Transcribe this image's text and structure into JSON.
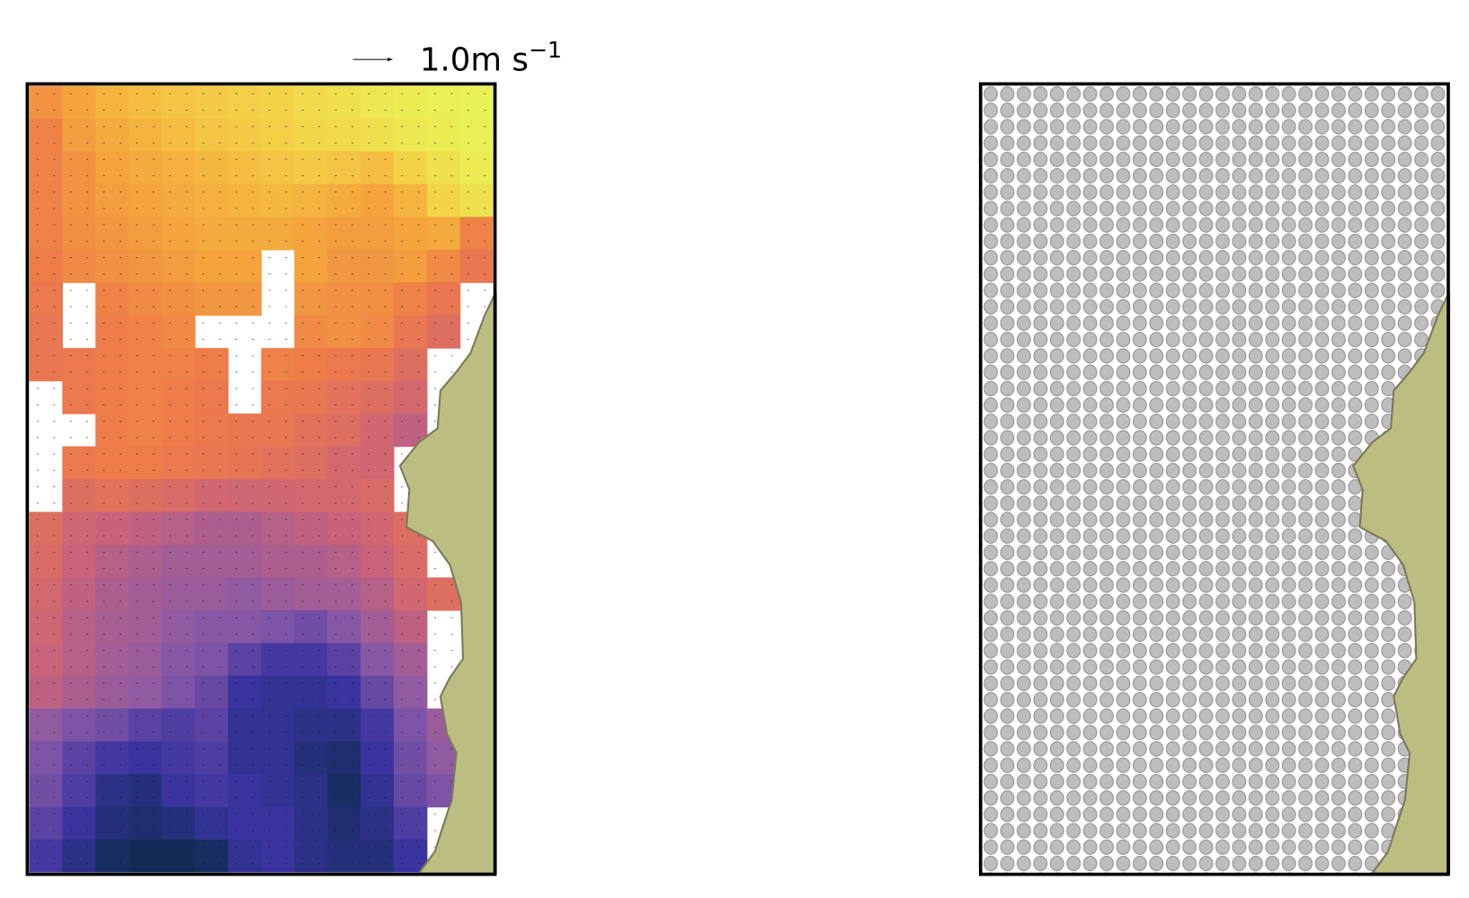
{
  "quiver_key": {
    "value": 1.0,
    "label": "1.0m s",
    "exponent": "−1"
  },
  "colormap": [
    "#0b2a4a",
    "#3a34a0",
    "#8a5aa6",
    "#cc6478",
    "#ee7a4a",
    "#f5a83c",
    "#f3d64a",
    "#e6f75a"
  ],
  "field": [
    [
      0.65,
      0.7,
      0.75,
      0.78,
      0.8,
      0.82,
      0.84,
      0.85,
      0.88,
      0.9,
      0.92,
      0.95,
      0.97,
      0.98
    ],
    [
      0.6,
      0.68,
      0.72,
      0.75,
      0.78,
      0.8,
      0.82,
      0.84,
      0.86,
      0.88,
      0.9,
      0.93,
      0.95,
      0.97
    ],
    [
      0.6,
      0.65,
      0.7,
      0.72,
      0.74,
      0.76,
      0.78,
      0.8,
      0.82,
      0.8,
      0.78,
      0.85,
      0.9,
      0.95
    ],
    [
      0.6,
      0.65,
      0.68,
      0.7,
      0.72,
      0.74,
      0.75,
      0.76,
      0.75,
      0.72,
      0.7,
      0.75,
      0.85,
      0.9
    ],
    [
      0.6,
      0.64,
      0.66,
      0.68,
      0.7,
      0.72,
      0.72,
      0.72,
      0.7,
      0.68,
      0.68,
      0.7,
      0.72,
      0.6
    ],
    [
      0.58,
      0.62,
      0.64,
      0.66,
      0.68,
      0.7,
      0.7,
      null,
      0.7,
      0.66,
      0.66,
      0.68,
      0.62,
      0.55
    ],
    [
      0.56,
      null,
      0.6,
      0.62,
      0.64,
      0.66,
      0.66,
      null,
      0.66,
      0.64,
      0.64,
      0.6,
      0.55,
      null
    ],
    [
      0.55,
      null,
      0.58,
      0.6,
      0.62,
      null,
      null,
      null,
      0.62,
      0.64,
      0.62,
      0.55,
      0.5,
      null
    ],
    [
      0.55,
      0.56,
      0.58,
      0.6,
      0.6,
      0.58,
      null,
      0.6,
      0.58,
      0.56,
      0.55,
      0.5,
      null,
      null
    ],
    [
      null,
      0.56,
      0.58,
      0.6,
      0.58,
      0.56,
      null,
      0.56,
      0.55,
      0.52,
      0.5,
      0.46,
      null,
      null
    ],
    [
      null,
      null,
      0.58,
      0.6,
      0.58,
      0.56,
      0.55,
      0.55,
      0.52,
      0.5,
      0.45,
      0.4,
      null,
      null
    ],
    [
      null,
      0.56,
      0.58,
      0.58,
      0.56,
      0.55,
      0.54,
      0.52,
      0.5,
      0.46,
      0.45,
      null,
      null,
      null
    ],
    [
      null,
      0.5,
      0.52,
      0.5,
      0.48,
      0.45,
      0.44,
      0.45,
      0.46,
      0.46,
      0.48,
      null,
      null,
      null
    ],
    [
      0.5,
      0.44,
      0.42,
      0.4,
      0.38,
      0.36,
      0.36,
      0.38,
      0.4,
      0.42,
      0.45,
      0.5,
      null,
      null
    ],
    [
      0.48,
      0.42,
      0.38,
      0.36,
      0.34,
      0.34,
      0.34,
      0.36,
      0.36,
      0.38,
      0.42,
      0.48,
      null,
      null
    ],
    [
      0.46,
      0.4,
      0.36,
      0.34,
      0.32,
      0.32,
      0.3,
      0.32,
      0.34,
      0.34,
      0.38,
      0.45,
      0.5,
      null
    ],
    [
      0.44,
      0.38,
      0.35,
      0.34,
      0.3,
      0.28,
      0.28,
      0.26,
      0.24,
      0.28,
      0.34,
      0.4,
      null,
      null
    ],
    [
      0.42,
      0.38,
      0.34,
      0.32,
      0.28,
      0.26,
      0.2,
      0.16,
      0.16,
      0.2,
      0.28,
      0.34,
      null,
      null
    ],
    [
      0.4,
      0.36,
      0.32,
      0.3,
      0.26,
      0.22,
      0.14,
      0.12,
      0.12,
      0.14,
      0.22,
      0.3,
      null,
      null
    ],
    [
      0.3,
      0.26,
      0.24,
      0.2,
      0.18,
      0.2,
      0.12,
      0.12,
      0.1,
      0.1,
      0.16,
      0.26,
      0.32,
      null
    ],
    [
      0.26,
      0.2,
      0.16,
      0.14,
      0.16,
      0.18,
      0.12,
      0.12,
      0.08,
      0.06,
      0.14,
      0.24,
      0.3,
      null
    ],
    [
      0.24,
      0.18,
      0.1,
      0.08,
      0.14,
      0.16,
      0.14,
      0.12,
      0.1,
      0.04,
      0.12,
      0.22,
      0.26,
      null
    ],
    [
      0.2,
      0.14,
      0.08,
      0.06,
      0.08,
      0.12,
      0.14,
      0.14,
      0.1,
      0.06,
      0.1,
      0.18,
      null,
      null
    ],
    [
      0.16,
      0.1,
      0.04,
      0.02,
      0.02,
      0.04,
      0.12,
      0.14,
      0.1,
      0.08,
      0.08,
      0.14,
      null,
      null
    ]
  ]
}
